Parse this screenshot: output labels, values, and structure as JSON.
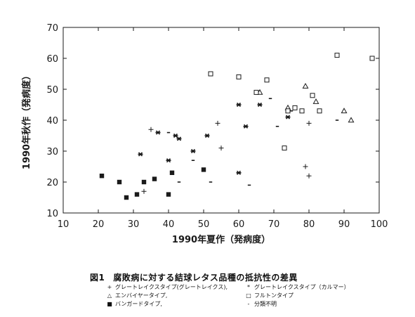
{
  "chart_data": {
    "type": "scatter",
    "title": "",
    "xlabel": "1990年夏作（発病度）",
    "ylabel": "1990年秋作（発病度）",
    "xlim": [
      10,
      100
    ],
    "ylim": [
      10,
      70
    ],
    "xticks": [
      "10",
      "20",
      "30",
      "40",
      "50",
      "60",
      "70",
      "80",
      "90",
      "100"
    ],
    "yticks": [
      "10",
      "20",
      "30",
      "40",
      "50",
      "60",
      "70"
    ],
    "grid": false,
    "series": [
      {
        "name": "グレートレイクスタイプ(グレートレイクス)",
        "marker": "plus",
        "points": [
          [
            33,
            17
          ],
          [
            35,
            37
          ],
          [
            54,
            39
          ],
          [
            55,
            31
          ],
          [
            80,
            39
          ],
          [
            79,
            25
          ],
          [
            80,
            22
          ]
        ]
      },
      {
        "name": "グレートレイクスタイプ（カルマー）",
        "marker": "star",
        "points": [
          [
            32,
            29
          ],
          [
            37,
            36
          ],
          [
            40,
            27
          ],
          [
            42,
            35
          ],
          [
            43,
            34
          ],
          [
            47,
            30
          ],
          [
            51,
            35
          ],
          [
            60,
            45
          ],
          [
            60,
            23
          ],
          [
            62,
            38
          ],
          [
            66,
            45
          ],
          [
            74,
            41
          ]
        ]
      },
      {
        "name": "エンバイヤータイプ,",
        "marker": "triangle",
        "points": [
          [
            66,
            49
          ],
          [
            74,
            44
          ],
          [
            79,
            51
          ],
          [
            82,
            46
          ],
          [
            90,
            43
          ],
          [
            92,
            40
          ]
        ]
      },
      {
        "name": "フルトンタイプ",
        "marker": "square-open",
        "points": [
          [
            52,
            55
          ],
          [
            60,
            54
          ],
          [
            65,
            49
          ],
          [
            68,
            53
          ],
          [
            73,
            31
          ],
          [
            74,
            43
          ],
          [
            76,
            44
          ],
          [
            78,
            43
          ],
          [
            81,
            48
          ],
          [
            83,
            43
          ],
          [
            88,
            61
          ],
          [
            98,
            60
          ]
        ]
      },
      {
        "name": "バンガードタイプ,",
        "marker": "square-filled",
        "points": [
          [
            21,
            22
          ],
          [
            26,
            20
          ],
          [
            28,
            15
          ],
          [
            31,
            16
          ],
          [
            33,
            20
          ],
          [
            36,
            21
          ],
          [
            40,
            16
          ],
          [
            41,
            23
          ],
          [
            50,
            24
          ]
        ]
      },
      {
        "name": "分類不明",
        "marker": "dash",
        "points": [
          [
            40,
            36
          ],
          [
            43,
            20
          ],
          [
            47,
            27
          ],
          [
            52,
            20
          ],
          [
            63,
            19
          ],
          [
            69,
            47
          ],
          [
            71,
            38
          ],
          [
            75,
            43
          ],
          [
            88,
            40
          ]
        ]
      }
    ]
  },
  "caption": {
    "number": "図1",
    "text": "腐敗病に対する結球レタス品種の抵抗性の差異"
  },
  "legend": [
    [
      {
        "symbol": "+",
        "label": "グレートレイクスタイプ(グレートレイクス),"
      },
      {
        "symbol": "*",
        "label": "グレートレイクスタイプ（カルマー）"
      }
    ],
    [
      {
        "symbol": "△",
        "label": "エンバイヤータイプ,"
      },
      {
        "symbol": "□",
        "label": "フルトンタイプ"
      }
    ],
    [
      {
        "symbol": "■",
        "label": "バンガードタイプ,"
      },
      {
        "symbol": "-",
        "label": "分類不明"
      }
    ]
  ],
  "colors": {
    "ink": "#1a1a1a",
    "background": "#ffffff"
  }
}
